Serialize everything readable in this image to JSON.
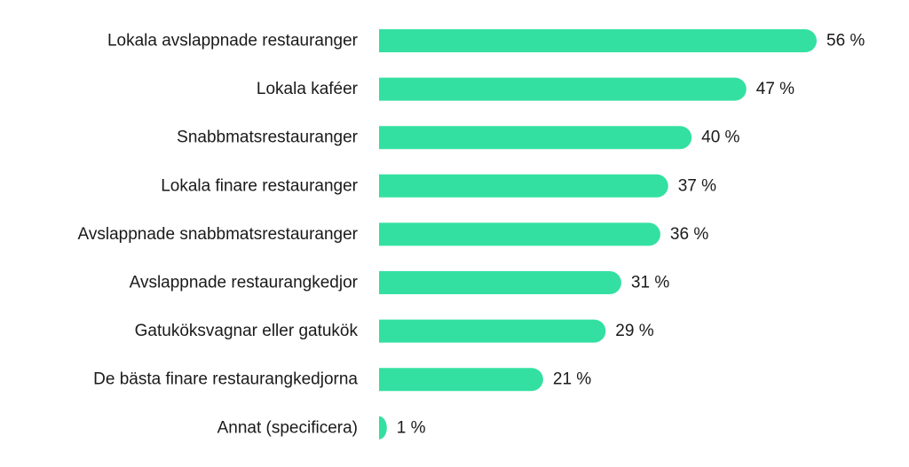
{
  "chart_data": {
    "type": "bar",
    "orientation": "horizontal",
    "categories": [
      "Lokala avslappnade restauranger",
      "Lokala kaféer",
      "Snabbmatsrestauranger",
      "Lokala finare restauranger",
      "Avslappnade snabbmatsrestauranger",
      "Avslappnade restaurangkedjor",
      "Gatuköksvagnar eller gatukök",
      "De bästa finare restaurangkedjorna",
      "Annat (specificera)"
    ],
    "values": [
      56,
      47,
      40,
      37,
      36,
      31,
      29,
      21,
      1
    ],
    "value_labels": [
      "56 %",
      "47 %",
      "40 %",
      "37 %",
      "36 %",
      "31 %",
      "29 %",
      "21 %",
      "1 %"
    ],
    "xlim": [
      0,
      56
    ],
    "grid": false,
    "legend": "none",
    "bar_color": "#34e0a1"
  }
}
